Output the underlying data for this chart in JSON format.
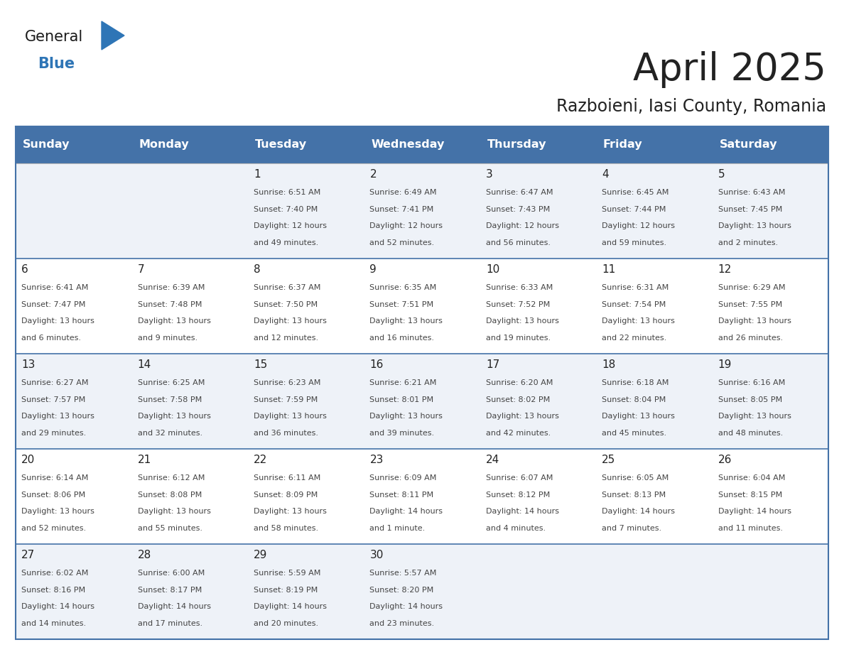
{
  "title": "April 2025",
  "subtitle": "Razboieni, Iasi County, Romania",
  "header_color": "#4472a8",
  "header_text_color": "#ffffff",
  "days_of_week": [
    "Sunday",
    "Monday",
    "Tuesday",
    "Wednesday",
    "Thursday",
    "Friday",
    "Saturday"
  ],
  "row_colors": [
    "#eef2f8",
    "#ffffff"
  ],
  "border_color": "#4472a8",
  "text_color": "#444444",
  "day_num_color": "#222222",
  "logo_general_color": "#1a1a1a",
  "logo_blue_color": "#2e75b6",
  "calendar_data": [
    [
      {
        "day": "",
        "lines": []
      },
      {
        "day": "",
        "lines": []
      },
      {
        "day": "1",
        "lines": [
          "Sunrise: 6:51 AM",
          "Sunset: 7:40 PM",
          "Daylight: 12 hours",
          "and 49 minutes."
        ]
      },
      {
        "day": "2",
        "lines": [
          "Sunrise: 6:49 AM",
          "Sunset: 7:41 PM",
          "Daylight: 12 hours",
          "and 52 minutes."
        ]
      },
      {
        "day": "3",
        "lines": [
          "Sunrise: 6:47 AM",
          "Sunset: 7:43 PM",
          "Daylight: 12 hours",
          "and 56 minutes."
        ]
      },
      {
        "day": "4",
        "lines": [
          "Sunrise: 6:45 AM",
          "Sunset: 7:44 PM",
          "Daylight: 12 hours",
          "and 59 minutes."
        ]
      },
      {
        "day": "5",
        "lines": [
          "Sunrise: 6:43 AM",
          "Sunset: 7:45 PM",
          "Daylight: 13 hours",
          "and 2 minutes."
        ]
      }
    ],
    [
      {
        "day": "6",
        "lines": [
          "Sunrise: 6:41 AM",
          "Sunset: 7:47 PM",
          "Daylight: 13 hours",
          "and 6 minutes."
        ]
      },
      {
        "day": "7",
        "lines": [
          "Sunrise: 6:39 AM",
          "Sunset: 7:48 PM",
          "Daylight: 13 hours",
          "and 9 minutes."
        ]
      },
      {
        "day": "8",
        "lines": [
          "Sunrise: 6:37 AM",
          "Sunset: 7:50 PM",
          "Daylight: 13 hours",
          "and 12 minutes."
        ]
      },
      {
        "day": "9",
        "lines": [
          "Sunrise: 6:35 AM",
          "Sunset: 7:51 PM",
          "Daylight: 13 hours",
          "and 16 minutes."
        ]
      },
      {
        "day": "10",
        "lines": [
          "Sunrise: 6:33 AM",
          "Sunset: 7:52 PM",
          "Daylight: 13 hours",
          "and 19 minutes."
        ]
      },
      {
        "day": "11",
        "lines": [
          "Sunrise: 6:31 AM",
          "Sunset: 7:54 PM",
          "Daylight: 13 hours",
          "and 22 minutes."
        ]
      },
      {
        "day": "12",
        "lines": [
          "Sunrise: 6:29 AM",
          "Sunset: 7:55 PM",
          "Daylight: 13 hours",
          "and 26 minutes."
        ]
      }
    ],
    [
      {
        "day": "13",
        "lines": [
          "Sunrise: 6:27 AM",
          "Sunset: 7:57 PM",
          "Daylight: 13 hours",
          "and 29 minutes."
        ]
      },
      {
        "day": "14",
        "lines": [
          "Sunrise: 6:25 AM",
          "Sunset: 7:58 PM",
          "Daylight: 13 hours",
          "and 32 minutes."
        ]
      },
      {
        "day": "15",
        "lines": [
          "Sunrise: 6:23 AM",
          "Sunset: 7:59 PM",
          "Daylight: 13 hours",
          "and 36 minutes."
        ]
      },
      {
        "day": "16",
        "lines": [
          "Sunrise: 6:21 AM",
          "Sunset: 8:01 PM",
          "Daylight: 13 hours",
          "and 39 minutes."
        ]
      },
      {
        "day": "17",
        "lines": [
          "Sunrise: 6:20 AM",
          "Sunset: 8:02 PM",
          "Daylight: 13 hours",
          "and 42 minutes."
        ]
      },
      {
        "day": "18",
        "lines": [
          "Sunrise: 6:18 AM",
          "Sunset: 8:04 PM",
          "Daylight: 13 hours",
          "and 45 minutes."
        ]
      },
      {
        "day": "19",
        "lines": [
          "Sunrise: 6:16 AM",
          "Sunset: 8:05 PM",
          "Daylight: 13 hours",
          "and 48 minutes."
        ]
      }
    ],
    [
      {
        "day": "20",
        "lines": [
          "Sunrise: 6:14 AM",
          "Sunset: 8:06 PM",
          "Daylight: 13 hours",
          "and 52 minutes."
        ]
      },
      {
        "day": "21",
        "lines": [
          "Sunrise: 6:12 AM",
          "Sunset: 8:08 PM",
          "Daylight: 13 hours",
          "and 55 minutes."
        ]
      },
      {
        "day": "22",
        "lines": [
          "Sunrise: 6:11 AM",
          "Sunset: 8:09 PM",
          "Daylight: 13 hours",
          "and 58 minutes."
        ]
      },
      {
        "day": "23",
        "lines": [
          "Sunrise: 6:09 AM",
          "Sunset: 8:11 PM",
          "Daylight: 14 hours",
          "and 1 minute."
        ]
      },
      {
        "day": "24",
        "lines": [
          "Sunrise: 6:07 AM",
          "Sunset: 8:12 PM",
          "Daylight: 14 hours",
          "and 4 minutes."
        ]
      },
      {
        "day": "25",
        "lines": [
          "Sunrise: 6:05 AM",
          "Sunset: 8:13 PM",
          "Daylight: 14 hours",
          "and 7 minutes."
        ]
      },
      {
        "day": "26",
        "lines": [
          "Sunrise: 6:04 AM",
          "Sunset: 8:15 PM",
          "Daylight: 14 hours",
          "and 11 minutes."
        ]
      }
    ],
    [
      {
        "day": "27",
        "lines": [
          "Sunrise: 6:02 AM",
          "Sunset: 8:16 PM",
          "Daylight: 14 hours",
          "and 14 minutes."
        ]
      },
      {
        "day": "28",
        "lines": [
          "Sunrise: 6:00 AM",
          "Sunset: 8:17 PM",
          "Daylight: 14 hours",
          "and 17 minutes."
        ]
      },
      {
        "day": "29",
        "lines": [
          "Sunrise: 5:59 AM",
          "Sunset: 8:19 PM",
          "Daylight: 14 hours",
          "and 20 minutes."
        ]
      },
      {
        "day": "30",
        "lines": [
          "Sunrise: 5:57 AM",
          "Sunset: 8:20 PM",
          "Daylight: 14 hours",
          "and 23 minutes."
        ]
      },
      {
        "day": "",
        "lines": []
      },
      {
        "day": "",
        "lines": []
      },
      {
        "day": "",
        "lines": []
      }
    ]
  ],
  "figsize": [
    11.88,
    9.18
  ],
  "dpi": 100
}
